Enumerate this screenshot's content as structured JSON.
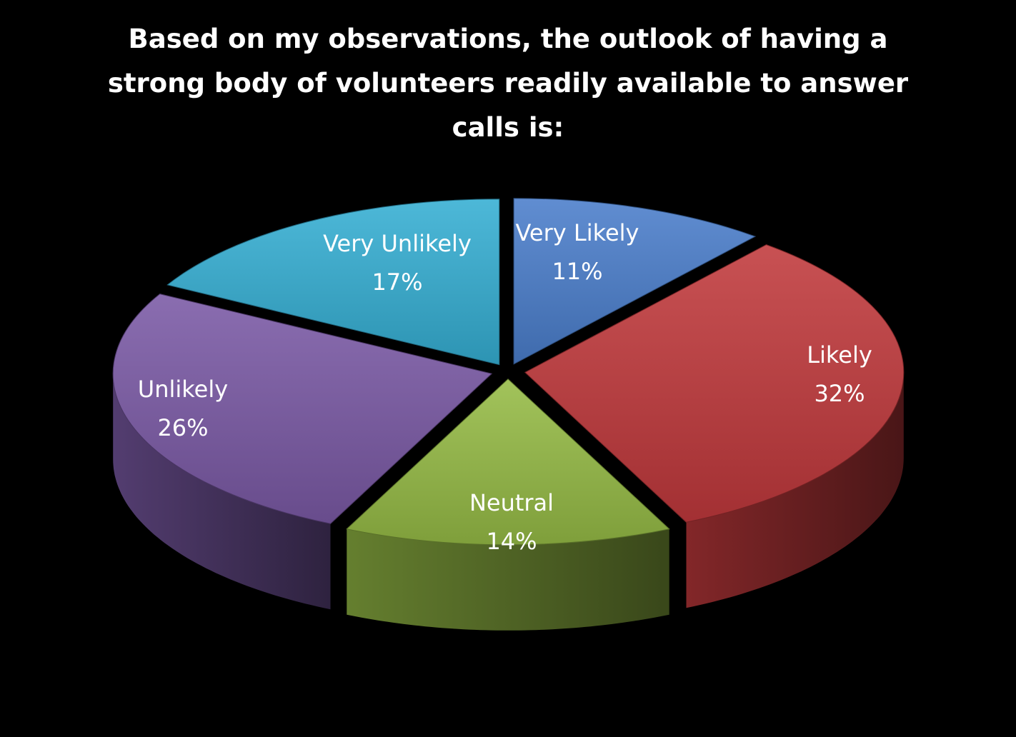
{
  "chart_data": {
    "type": "pie",
    "style": "3d-exploded",
    "title_lines": [
      "Based on my observations, the outlook of having a",
      "strong body of volunteers readily available to answer",
      "calls is:"
    ],
    "categories": [
      "Very Likely",
      "Likely",
      "Neutral",
      "Unlikely",
      "Very Unlikely"
    ],
    "values": [
      11,
      32,
      14,
      26,
      17
    ],
    "value_labels": [
      "11%",
      "32%",
      "14%",
      "26%",
      "17%"
    ],
    "colors": [
      "#4a7ecb",
      "#c0393c",
      "#95bb45",
      "#7a59a5",
      "#35aed3"
    ],
    "legend": "none",
    "background": "#000000"
  }
}
